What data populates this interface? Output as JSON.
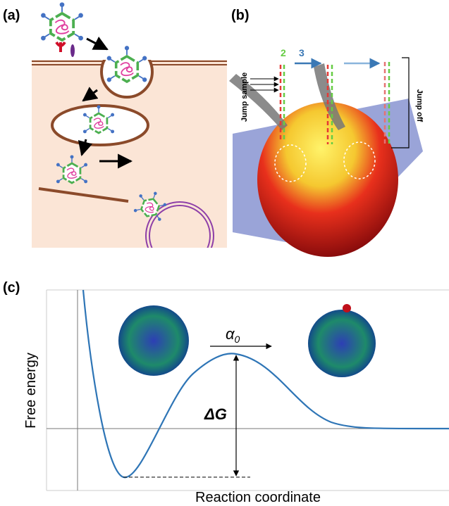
{
  "panels": [
    {
      "label": "(a)"
    },
    {
      "label": "(b)",
      "step_2": "2",
      "step_3": "3",
      "jump_sample": "Jump sample",
      "jump_off": "Jump off"
    },
    {
      "label": "(c)",
      "y_axis_label": "Free energy",
      "x_axis_label": "Reaction coordinate",
      "rate_symbol": "α",
      "rate_subscript": "0",
      "barrier": "ΔG"
    }
  ]
}
